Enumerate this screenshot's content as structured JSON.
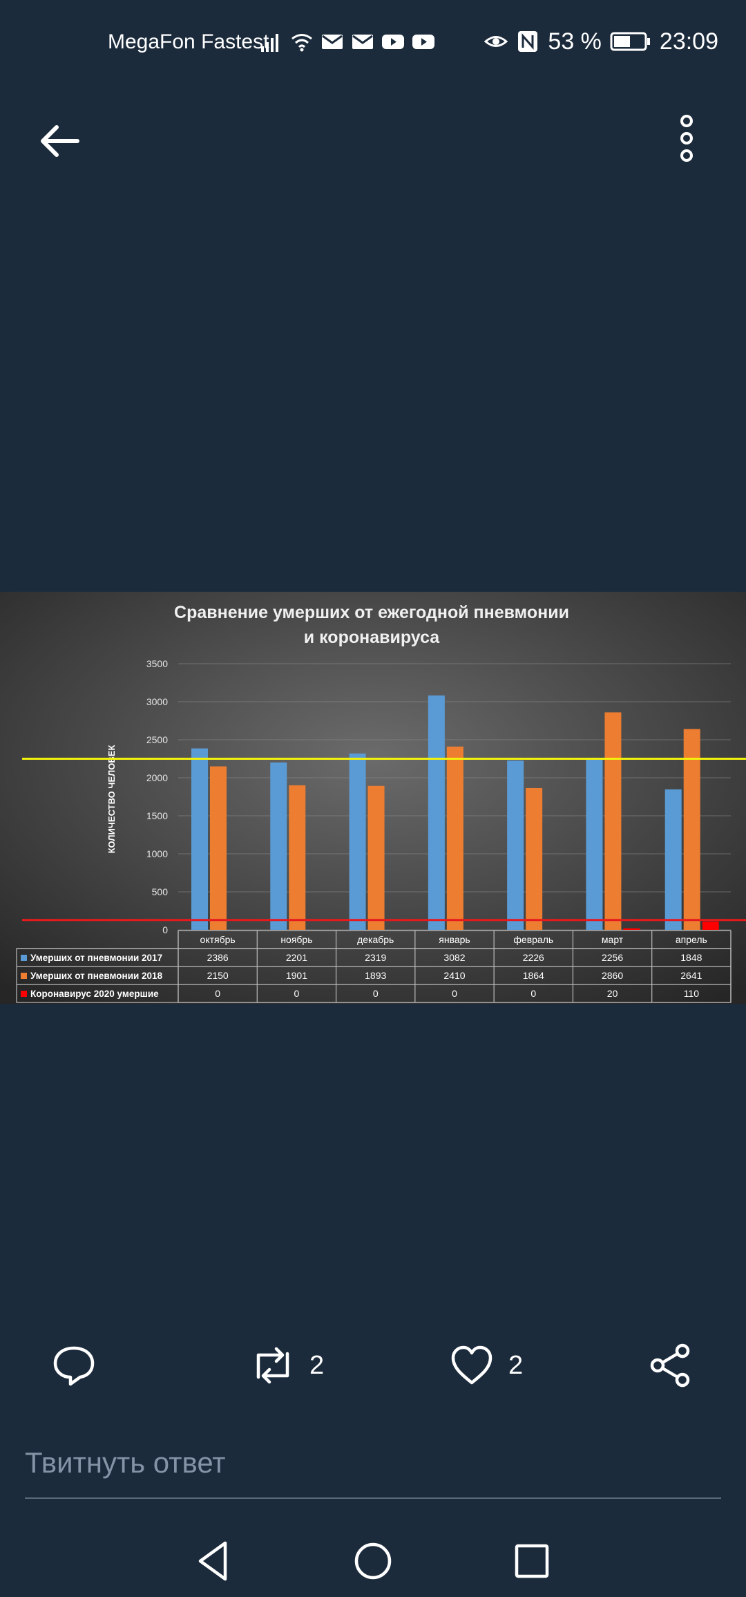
{
  "status_bar": {
    "carrier": "MegaFon Fastest",
    "battery": "53 %",
    "time": "23:09",
    "icons": [
      "signal-icon",
      "wifi-icon",
      "mail-icon",
      "mail-icon",
      "youtube-icon",
      "youtube-icon",
      "eye-icon",
      "nfc-icon",
      "battery-icon"
    ]
  },
  "tweet": {
    "retweet_count": "2",
    "like_count": "2"
  },
  "reply": {
    "placeholder": "Твитнуть ответ"
  },
  "colors": {
    "background": "#1c2b3c",
    "series_2017": "#5b9bd5",
    "series_2018": "#ed7d31",
    "series_2020": "#ff0000",
    "yellow_line": "#f2f20a",
    "red_line": "#e8191d"
  },
  "chart_data": {
    "type": "bar",
    "title": "Сравнение умерших от ежегодной пневмонии",
    "title_line2": "и коронавируса",
    "ylabel": "КОЛИЧЕСТВО ЧЕЛОВЕК",
    "ylim": [
      0,
      3500
    ],
    "yticks": [
      0,
      500,
      1000,
      1500,
      2000,
      2500,
      3000,
      3500
    ],
    "categories": [
      "октябрь",
      "ноябрь",
      "декабрь",
      "январь",
      "февраль",
      "март",
      "апрель"
    ],
    "series": [
      {
        "name": "Умерших от пневмонии 2017",
        "color": "#5b9bd5",
        "values": [
          2386,
          2201,
          2319,
          3082,
          2226,
          2256,
          1848
        ]
      },
      {
        "name": "Умерших от пневмонии 2018",
        "color": "#ed7d31",
        "values": [
          2150,
          1901,
          1893,
          2410,
          1864,
          2860,
          2641
        ]
      },
      {
        "name": "Коронавирус 2020 умершие",
        "color": "#ff0000",
        "values": [
          0,
          0,
          0,
          0,
          0,
          20,
          110
        ]
      }
    ],
    "grid": true,
    "legend": "data-table",
    "overlay_lines": [
      {
        "color": "#f2f20a",
        "value": 2250
      },
      {
        "color": "#e8191d",
        "value": 130
      }
    ]
  }
}
